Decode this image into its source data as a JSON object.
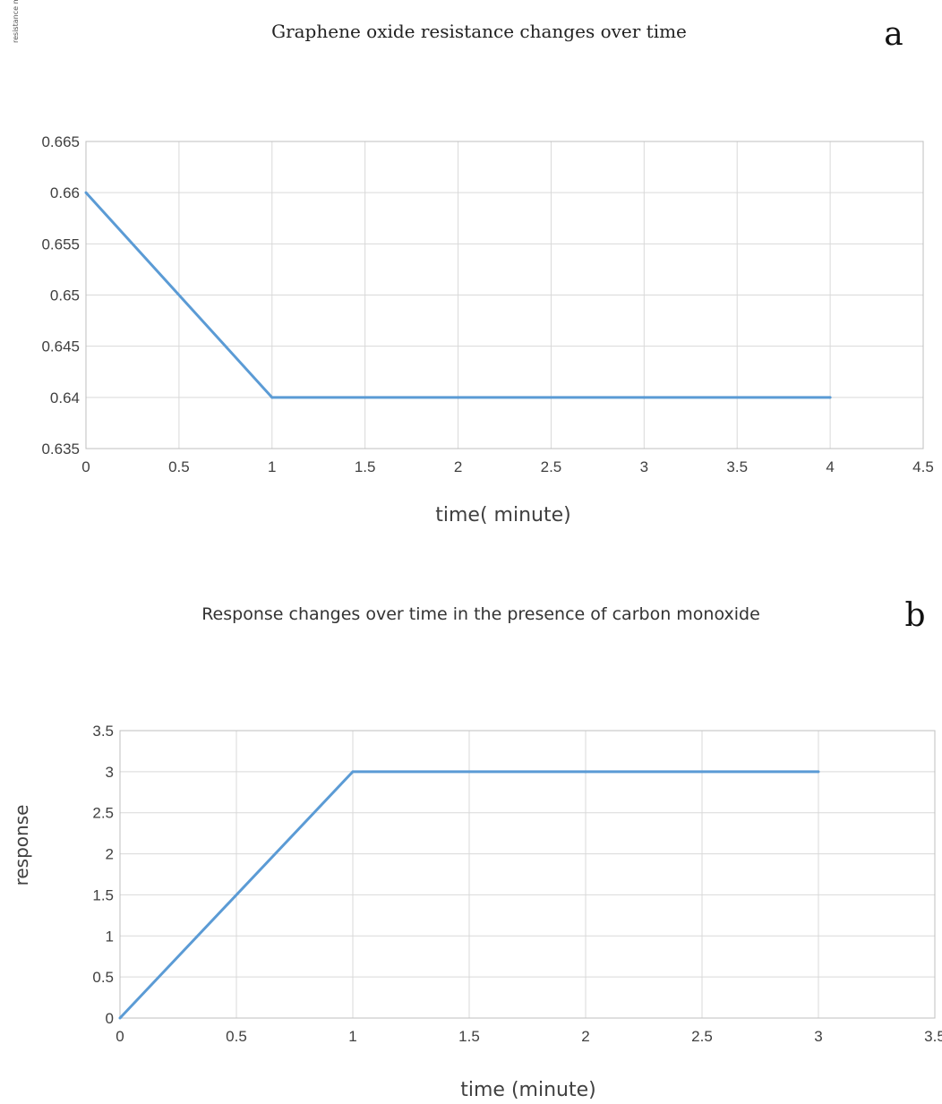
{
  "chart_data": [
    {
      "type": "line",
      "panel_label": "a",
      "title": "Graphene oxide  resistance changes over time",
      "xlabel": "time( minute)",
      "ylabel": "resistance mΩ",
      "xlim": [
        0,
        4.5
      ],
      "ylim": [
        0.635,
        0.665
      ],
      "x_ticks": [
        "0",
        "0.5",
        "1",
        "1.5",
        "2",
        "2.5",
        "3",
        "3.5",
        "4",
        "4.5"
      ],
      "y_ticks": [
        "0.635",
        "0.64",
        "0.645",
        "0.65",
        "0.655",
        "0.66",
        "0.665"
      ],
      "grid": true,
      "series": [
        {
          "color": "#5b9bd5",
          "x": [
            0,
            1,
            2,
            3,
            4
          ],
          "y": [
            0.66,
            0.64,
            0.64,
            0.64,
            0.64
          ]
        }
      ]
    },
    {
      "type": "line",
      "panel_label": "b",
      "title": "Response changes over time in the presence of carbon monoxide",
      "xlabel": "time (minute)",
      "ylabel": "response",
      "xlim": [
        0,
        3.5
      ],
      "ylim": [
        0,
        3.5
      ],
      "x_ticks": [
        "0",
        "0.5",
        "1",
        "1.5",
        "2",
        "2.5",
        "3",
        "3.5"
      ],
      "y_ticks": [
        "0",
        "0.5",
        "1",
        "1.5",
        "2",
        "2.5",
        "3",
        "3.5"
      ],
      "grid": true,
      "series": [
        {
          "color": "#5b9bd5",
          "x": [
            0,
            1,
            2,
            3
          ],
          "y": [
            0,
            3,
            3,
            3
          ]
        }
      ]
    }
  ]
}
